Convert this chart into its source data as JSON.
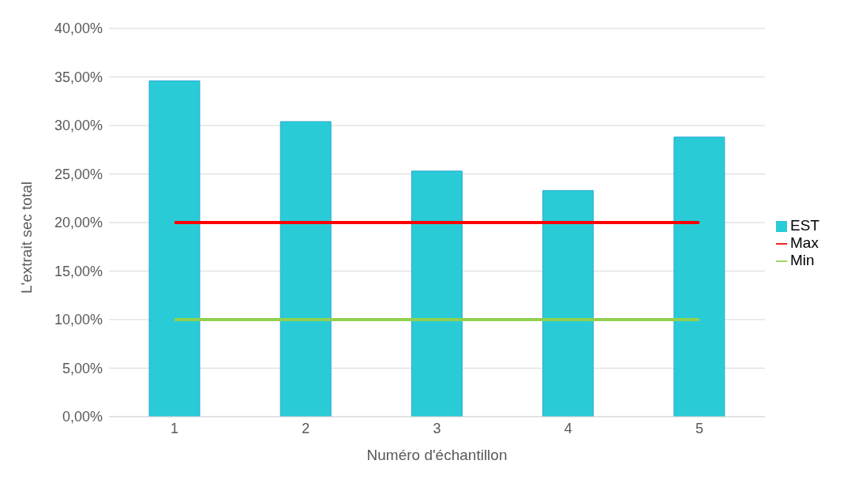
{
  "chart_data": {
    "type": "bar",
    "xlabel": "Numéro d'échantillon",
    "ylabel": "L'extrait sec total",
    "categories": [
      "1",
      "2",
      "3",
      "4",
      "5"
    ],
    "series": [
      {
        "name": "EST",
        "color": "#29ccd6",
        "values": [
          34.6,
          30.4,
          25.3,
          23.3,
          28.8
        ]
      },
      {
        "name": "Max",
        "type": "line",
        "color": "#ff0000",
        "values": [
          20,
          20,
          20,
          20,
          20
        ]
      },
      {
        "name": "Min",
        "type": "line",
        "color": "#92d050",
        "values": [
          10,
          10,
          10,
          10,
          10
        ]
      }
    ],
    "ylim": [
      0,
      40
    ],
    "yticks": [
      {
        "value": 0,
        "label": "0,00%"
      },
      {
        "value": 5,
        "label": "5,00%"
      },
      {
        "value": 10,
        "label": "10,00%"
      },
      {
        "value": 15,
        "label": "15,00%"
      },
      {
        "value": 20,
        "label": "20,00%"
      },
      {
        "value": 25,
        "label": "25,00%"
      },
      {
        "value": 30,
        "label": "30,00%"
      },
      {
        "value": 35,
        "label": "35,00%"
      },
      {
        "value": 40,
        "label": "40,00%"
      }
    ],
    "grid": "y",
    "legend": "right",
    "marker": "none"
  }
}
